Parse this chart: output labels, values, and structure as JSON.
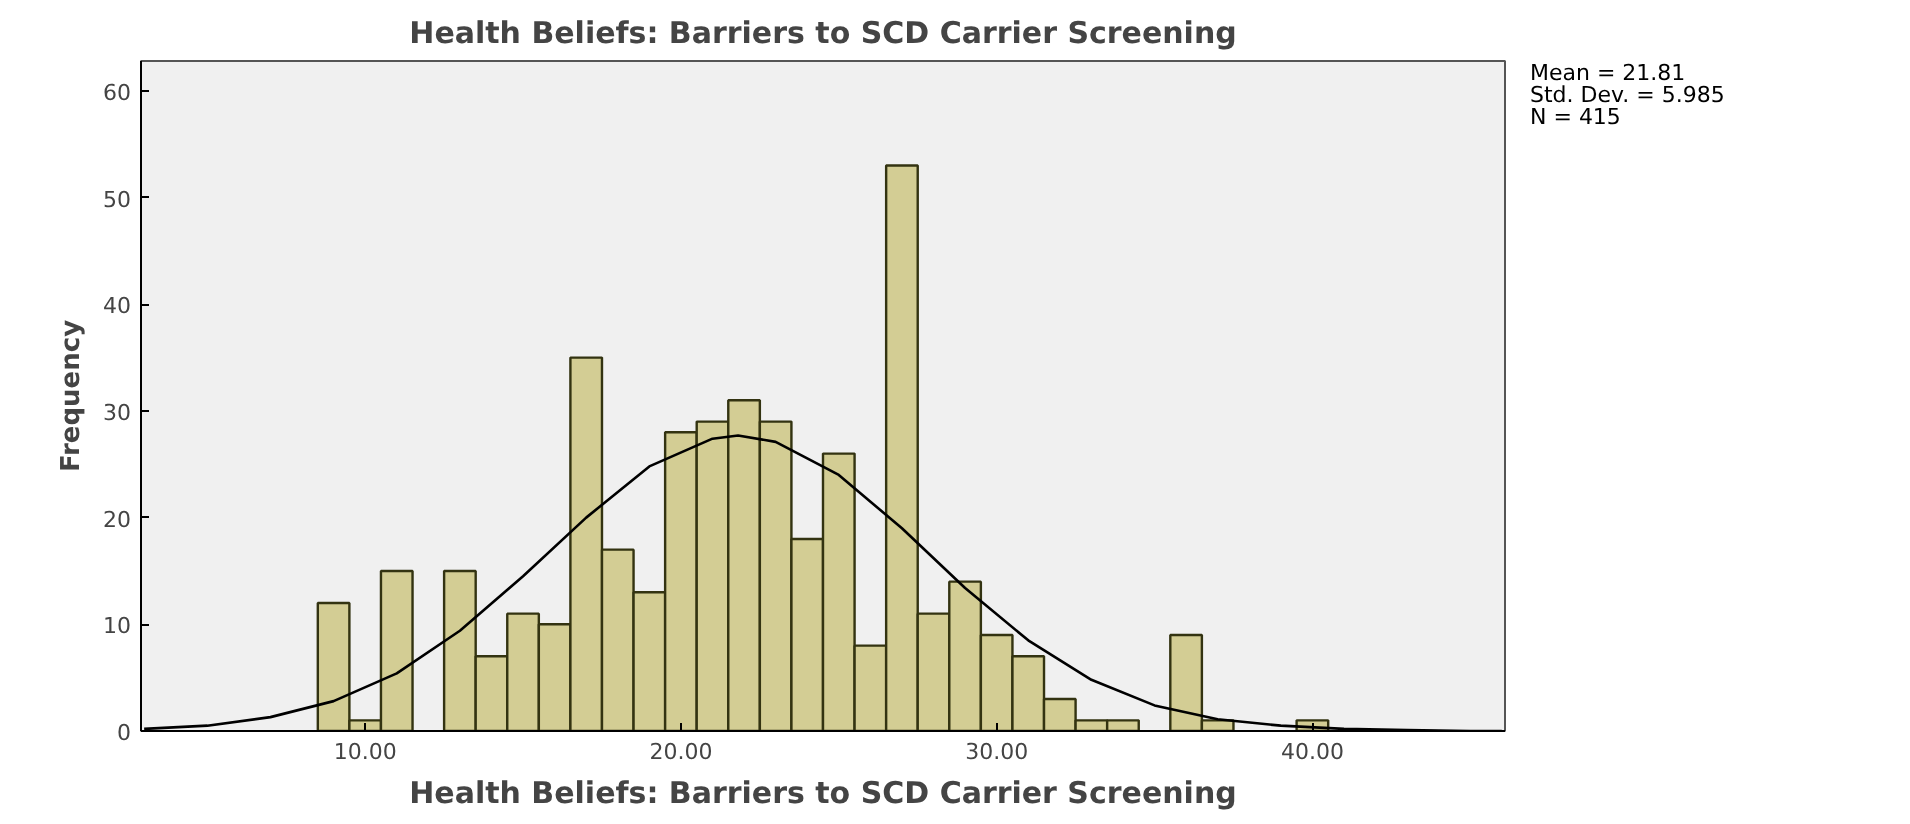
{
  "chart_data": {
    "type": "histogram",
    "title": "Health Beliefs: Barriers to SCD Carrier Screening",
    "xlabel": "Health Beliefs: Barriers to SCD Carrier Screening",
    "ylabel": "Frequency",
    "bins": [
      8.5,
      9.5,
      10.5,
      11.5,
      12.5,
      13.5,
      14.5,
      15.5,
      16.5,
      17.5,
      18.5,
      19.5,
      20.5,
      21.5,
      22.5,
      23.5,
      24.5,
      25.5,
      26.5,
      27.5,
      28.5,
      29.5,
      30.5,
      31.5,
      32.5,
      33.5,
      34.5,
      35.5,
      36.5,
      37.5,
      38.5,
      39.5,
      40.5
    ],
    "values": [
      12,
      1,
      15,
      0,
      15,
      7,
      11,
      10,
      35,
      17,
      13,
      28,
      29,
      31,
      29,
      18,
      26,
      8,
      53,
      11,
      14,
      9,
      7,
      3,
      1,
      1,
      0,
      9,
      1,
      0,
      0,
      1
    ],
    "color": "#d3cd94",
    "series": [
      {
        "type": "line",
        "color": "#000000",
        "x": [
          3,
          5,
          7,
          9,
          11,
          13,
          15,
          17,
          19,
          21,
          21.81,
          23,
          25,
          27,
          29,
          31,
          33,
          35,
          37,
          39,
          41,
          43,
          45,
          46
        ],
        "values": [
          0.2,
          0.5,
          1.3,
          2.8,
          5.4,
          9.4,
          14.5,
          20.0,
          24.8,
          27.4,
          27.7,
          27.1,
          24.0,
          19.0,
          13.4,
          8.5,
          4.8,
          2.4,
          1.1,
          0.5,
          0.2,
          0.1,
          0.0,
          0.0
        ]
      }
    ],
    "xlim": [
      2.9,
      46.1
    ],
    "xticks": [
      {
        "value": 10,
        "label": "10.00"
      },
      {
        "value": 20,
        "label": "20.00"
      },
      {
        "value": 30,
        "label": "30.00"
      },
      {
        "value": 40,
        "label": "40.00"
      }
    ],
    "ylim": [
      0,
      62.8
    ],
    "yticks": [
      0,
      10,
      20,
      30,
      40,
      50,
      60
    ],
    "grid": false,
    "annotations": [
      "Mean = 21.81",
      "Std. Dev. = 5.985",
      "N = 415"
    ]
  }
}
